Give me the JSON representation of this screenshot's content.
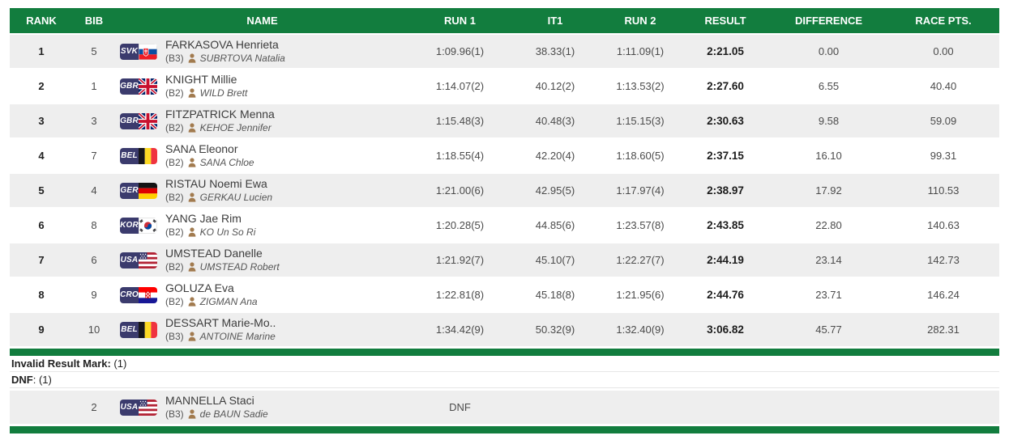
{
  "colors": {
    "green": "#127d3e",
    "row_alt": "#eeeeee",
    "badge_navy": "#3b3b6d"
  },
  "header": {
    "rank": "RANK",
    "bib": "BIB",
    "name": "NAME",
    "run1": "RUN 1",
    "it1": "IT1",
    "run2": "RUN 2",
    "result": "RESULT",
    "difference": "DIFFERENCE",
    "race_pts": "RACE PTS."
  },
  "rows": [
    {
      "rank": "1",
      "bib": "5",
      "noc": "SVK",
      "athlete": "FARKASOVA Henrieta",
      "category": "(B3)",
      "guide": "SUBRTOVA Natalia",
      "run1": "1:09.96(1)",
      "it1": "38.33(1)",
      "run2": "1:11.09(1)",
      "result": "2:21.05",
      "difference": "0.00",
      "race_pts": "0.00"
    },
    {
      "rank": "2",
      "bib": "1",
      "noc": "GBR",
      "athlete": "KNIGHT Millie",
      "category": "(B2)",
      "guide": "WILD Brett",
      "run1": "1:14.07(2)",
      "it1": "40.12(2)",
      "run2": "1:13.53(2)",
      "result": "2:27.60",
      "difference": "6.55",
      "race_pts": "40.40"
    },
    {
      "rank": "3",
      "bib": "3",
      "noc": "GBR",
      "athlete": "FITZPATRICK Menna",
      "category": "(B2)",
      "guide": "KEHOE Jennifer",
      "run1": "1:15.48(3)",
      "it1": "40.48(3)",
      "run2": "1:15.15(3)",
      "result": "2:30.63",
      "difference": "9.58",
      "race_pts": "59.09"
    },
    {
      "rank": "4",
      "bib": "7",
      "noc": "BEL",
      "athlete": "SANA Eleonor",
      "category": "(B2)",
      "guide": "SANA Chloe",
      "run1": "1:18.55(4)",
      "it1": "42.20(4)",
      "run2": "1:18.60(5)",
      "result": "2:37.15",
      "difference": "16.10",
      "race_pts": "99.31"
    },
    {
      "rank": "5",
      "bib": "4",
      "noc": "GER",
      "athlete": "RISTAU Noemi Ewa",
      "category": "(B2)",
      "guide": "GERKAU Lucien",
      "run1": "1:21.00(6)",
      "it1": "42.95(5)",
      "run2": "1:17.97(4)",
      "result": "2:38.97",
      "difference": "17.92",
      "race_pts": "110.53"
    },
    {
      "rank": "6",
      "bib": "8",
      "noc": "KOR",
      "athlete": "YANG Jae Rim",
      "category": "(B2)",
      "guide": "KO Un So Ri",
      "run1": "1:20.28(5)",
      "it1": "44.85(6)",
      "run2": "1:23.57(8)",
      "result": "2:43.85",
      "difference": "22.80",
      "race_pts": "140.63"
    },
    {
      "rank": "7",
      "bib": "6",
      "noc": "USA",
      "athlete": "UMSTEAD Danelle",
      "category": "(B2)",
      "guide": "UMSTEAD Robert",
      "run1": "1:21.92(7)",
      "it1": "45.10(7)",
      "run2": "1:22.27(7)",
      "result": "2:44.19",
      "difference": "23.14",
      "race_pts": "142.73"
    },
    {
      "rank": "8",
      "bib": "9",
      "noc": "CRO",
      "athlete": "GOLUZA Eva",
      "category": "(B2)",
      "guide": "ZIGMAN Ana",
      "run1": "1:22.81(8)",
      "it1": "45.18(8)",
      "run2": "1:21.95(6)",
      "result": "2:44.76",
      "difference": "23.71",
      "race_pts": "146.24"
    },
    {
      "rank": "9",
      "bib": "10",
      "noc": "BEL",
      "athlete": "DESSART Marie-Mo..",
      "category": "(B3)",
      "guide": "ANTOINE Marine",
      "run1": "1:34.42(9)",
      "it1": "50.32(9)",
      "run2": "1:32.40(9)",
      "result": "3:06.82",
      "difference": "45.77",
      "race_pts": "282.31"
    }
  ],
  "footer": {
    "invalid_mark_label": "Invalid Result Mark:",
    "invalid_mark_value": " (1)",
    "dnf_label": "DNF",
    "dnf_value": ": (1)",
    "dnf_row": {
      "rank": "",
      "bib": "2",
      "noc": "USA",
      "athlete": "MANNELLA Staci",
      "category": "(B3)",
      "guide": "de BAUN Sadie",
      "run1": "DNF",
      "it1": "",
      "run2": "",
      "result": "",
      "difference": "",
      "race_pts": ""
    }
  }
}
